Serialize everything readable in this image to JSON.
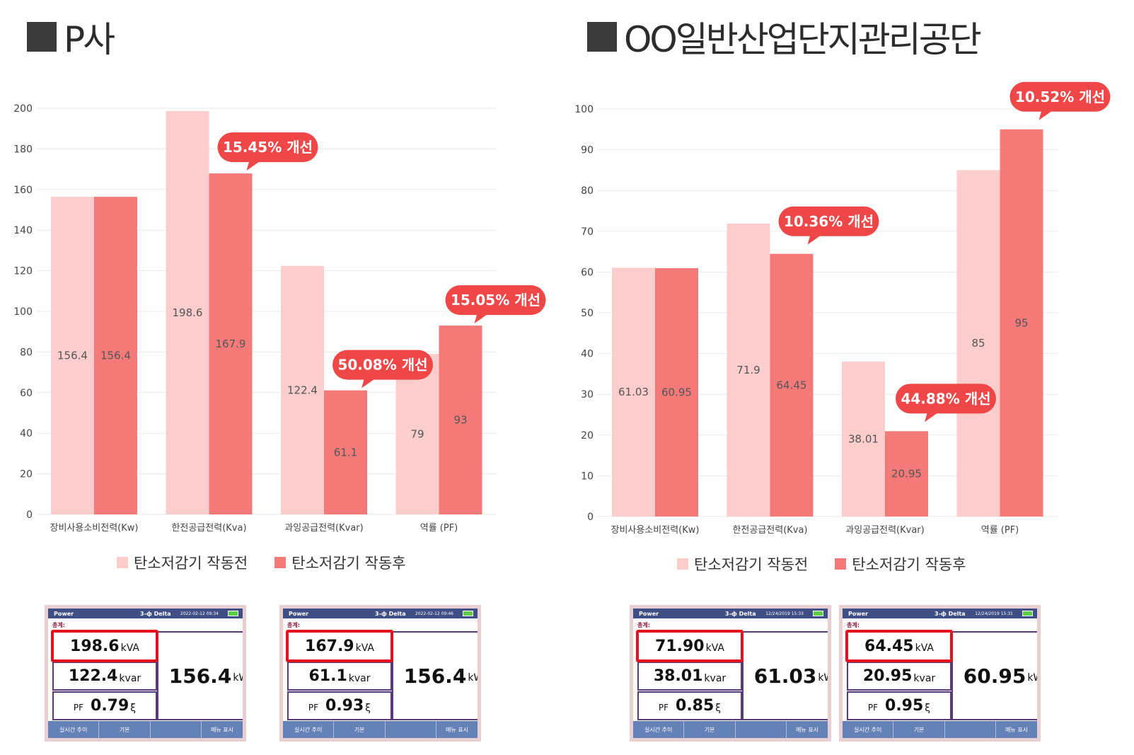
{
  "left_title": "P사",
  "right_title": "OO일반산업단지관리공단",
  "colors": {
    "before": "#fccdcd",
    "after": "#f47a7a",
    "bubble": "#ef4747",
    "grid": "#e9e9e9"
  },
  "chart_data": [
    {
      "type": "bar",
      "title": "P사",
      "categories": [
        "장비사용소비전력(Kw)",
        "한전공급전력(Kva)",
        "과잉공급전력(Kvar)",
        "역률 (PF)"
      ],
      "series": [
        {
          "name": "탄소저감기 작동전",
          "values": [
            156.4,
            198.6,
            122.4,
            79
          ]
        },
        {
          "name": "탄소저감기 작동후",
          "values": [
            156.4,
            167.9,
            61.1,
            93
          ]
        }
      ],
      "value_labels": [
        [
          "156.4",
          "198.6",
          "122.4",
          "79"
        ],
        [
          "156.4",
          "167.9",
          "61.1",
          "93"
        ]
      ],
      "ylim": [
        0,
        200
      ],
      "yticks": [
        "0",
        "20",
        "40",
        "60",
        "80",
        "100",
        "120",
        "140",
        "160",
        "180",
        "200"
      ],
      "grid": true,
      "legend": "bottom",
      "annotations": [
        {
          "category": 1,
          "text": "15.45% 개선"
        },
        {
          "category": 2,
          "text": "50.08% 개선"
        },
        {
          "category": 3,
          "text": "15.05% 개선"
        }
      ]
    },
    {
      "type": "bar",
      "title": "OO일반산업단지관리공단",
      "categories": [
        "장비사용소비전력(Kw)",
        "한전공급전력(Kva)",
        "과잉공급전력(Kvar)",
        "역률 (PF)"
      ],
      "series": [
        {
          "name": "탄소저감기 작동전",
          "values": [
            61.03,
            71.9,
            38.01,
            85
          ]
        },
        {
          "name": "탄소저감기 작동후",
          "values": [
            60.95,
            64.45,
            20.95,
            95
          ]
        }
      ],
      "value_labels": [
        [
          "61.03",
          "71.9",
          "38.01",
          "85"
        ],
        [
          "60.95",
          "64.45",
          "20.95",
          "95"
        ]
      ],
      "ylim": [
        0,
        100
      ],
      "yticks": [
        "0",
        "10",
        "20",
        "30",
        "40",
        "50",
        "60",
        "70",
        "80",
        "90",
        "100"
      ],
      "grid": true,
      "legend": "bottom",
      "annotations": [
        {
          "category": 1,
          "text": "10.36% 개선"
        },
        {
          "category": 2,
          "text": "44.88% 개선"
        },
        {
          "category": 3,
          "text": "10.52% 개선"
        }
      ]
    }
  ],
  "legend": {
    "before": "탄소저감기 작동전",
    "after": "탄소저감기 작동후"
  },
  "meters": [
    {
      "title": "Power",
      "mode": "3-ф Delta",
      "time": "2022-02-12 09:34",
      "sub": "총계:",
      "kva": "198.6",
      "kva_unit": "kVA",
      "kvar": "122.4",
      "kvar_unit": "kvar",
      "pf_label": "PF",
      "pf": "0.79",
      "pf_unit": "ξ",
      "kw": "156.4",
      "kw_unit": "kW",
      "btn1": "실시간 추이",
      "btn2": "기본",
      "btn3": "",
      "btn4": "메뉴 표시"
    },
    {
      "title": "Power",
      "mode": "3-ф Delta",
      "time": "2022-02-12 09:46",
      "sub": "총계:",
      "kva": "167.9",
      "kva_unit": "kVA",
      "kvar": "61.1",
      "kvar_unit": "kvar",
      "pf_label": "PF",
      "pf": "0.93",
      "pf_unit": "ξ",
      "kw": "156.4",
      "kw_unit": "kW",
      "btn1": "실시간 추이",
      "btn2": "기본",
      "btn3": "",
      "btn4": "메뉴 표시"
    },
    {
      "title": "Power",
      "mode": "3-ф Delta",
      "time": "12/24/2019 15:33",
      "sub": "총계:",
      "kva": "71.90",
      "kva_unit": "kVA",
      "kvar": "38.01",
      "kvar_unit": "kvar",
      "pf_label": "PF",
      "pf": "0.85",
      "pf_unit": "ξ",
      "kw": "61.03",
      "kw_unit": "kW",
      "btn1": "실시간 추이",
      "btn2": "기본",
      "btn3": "",
      "btn4": "메뉴 표시"
    },
    {
      "title": "Power",
      "mode": "3-ф Delta",
      "time": "12/24/2019 15:31",
      "sub": "총계:",
      "kva": "64.45",
      "kva_unit": "kVA",
      "kvar": "20.95",
      "kvar_unit": "kvar",
      "pf_label": "PF",
      "pf": "0.95",
      "pf_unit": "ξ",
      "kw": "60.95",
      "kw_unit": "kW",
      "btn1": "실시간 추이",
      "btn2": "기본",
      "btn3": "",
      "btn4": "메뉴 표시"
    }
  ]
}
